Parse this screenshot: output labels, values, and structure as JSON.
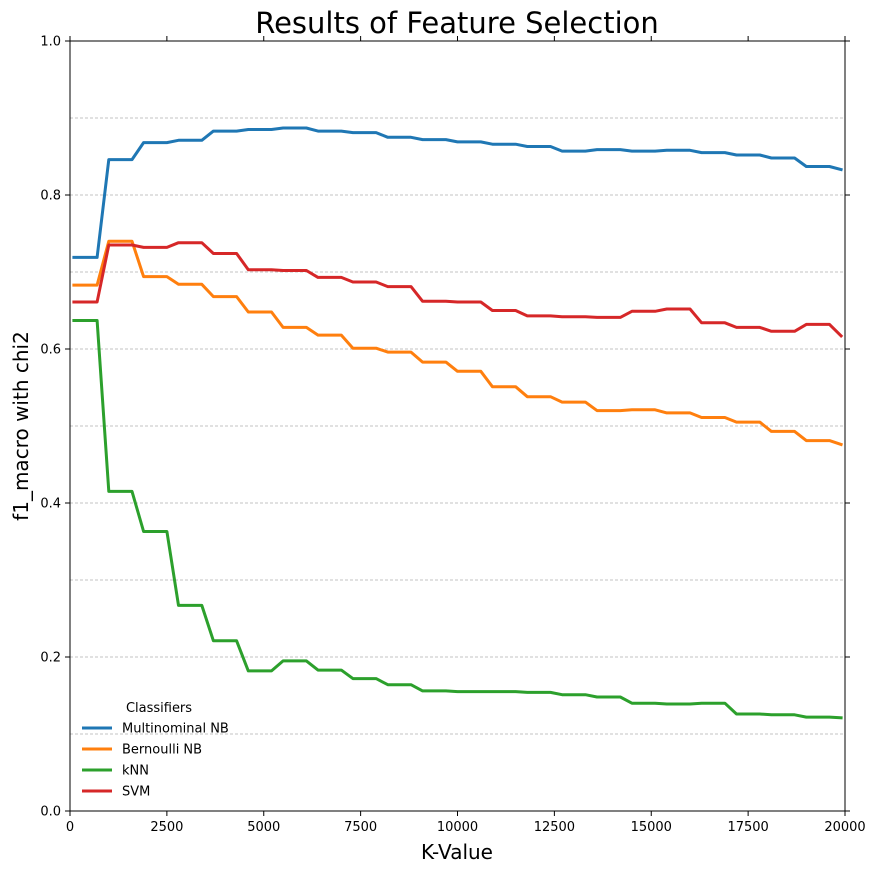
{
  "chart_data": {
    "type": "line",
    "title": "Results of Feature Selection",
    "xlabel": "K-Value",
    "ylabel": "f1_macro with chi2",
    "xlim": [
      0,
      20000
    ],
    "ylim": [
      0.0,
      1.0
    ],
    "xticks": [
      "0",
      "2500",
      "5000",
      "7500",
      "10000",
      "12500",
      "15000",
      "17500",
      "20000"
    ],
    "yticks": [
      "0.0",
      "0.2",
      "0.4",
      "0.6",
      "0.8",
      "1.0"
    ],
    "grid": "horizontal dashed at every 0.1",
    "legend_title": "Classifiers",
    "legend_position": "lower-left",
    "x": [
      100,
      700,
      1000,
      1600,
      1900,
      2500,
      2800,
      3400,
      3700,
      4300,
      4600,
      5200,
      5500,
      6100,
      6400,
      7000,
      7300,
      7900,
      8200,
      8800,
      9100,
      9700,
      10000,
      10600,
      10900,
      11500,
      11800,
      12400,
      12700,
      13300,
      13600,
      14200,
      14500,
      15100,
      15400,
      16000,
      16300,
      16900,
      17200,
      17800,
      18100,
      18700,
      19000,
      19600,
      19900
    ],
    "series": [
      {
        "name": "Multinominal NB",
        "color": "#1f77b4",
        "values": [
          0.719,
          0.719,
          0.846,
          0.846,
          0.868,
          0.868,
          0.871,
          0.871,
          0.883,
          0.883,
          0.885,
          0.885,
          0.887,
          0.887,
          0.883,
          0.883,
          0.881,
          0.881,
          0.875,
          0.875,
          0.872,
          0.872,
          0.869,
          0.869,
          0.866,
          0.866,
          0.863,
          0.863,
          0.857,
          0.857,
          0.859,
          0.859,
          0.857,
          0.857,
          0.858,
          0.858,
          0.855,
          0.855,
          0.852,
          0.852,
          0.848,
          0.848,
          0.837,
          0.837,
          0.833
        ]
      },
      {
        "name": "Bernoulli NB",
        "color": "#ff7f0e",
        "values": [
          0.683,
          0.683,
          0.74,
          0.74,
          0.694,
          0.694,
          0.684,
          0.684,
          0.668,
          0.668,
          0.648,
          0.648,
          0.628,
          0.628,
          0.618,
          0.618,
          0.601,
          0.601,
          0.596,
          0.596,
          0.583,
          0.583,
          0.571,
          0.571,
          0.551,
          0.551,
          0.538,
          0.538,
          0.531,
          0.531,
          0.52,
          0.52,
          0.521,
          0.521,
          0.517,
          0.517,
          0.511,
          0.511,
          0.505,
          0.505,
          0.493,
          0.493,
          0.481,
          0.481,
          0.476
        ]
      },
      {
        "name": "kNN",
        "color": "#2ca02c",
        "values": [
          0.637,
          0.637,
          0.415,
          0.415,
          0.363,
          0.363,
          0.267,
          0.267,
          0.221,
          0.221,
          0.182,
          0.182,
          0.195,
          0.195,
          0.183,
          0.183,
          0.172,
          0.172,
          0.164,
          0.164,
          0.156,
          0.156,
          0.155,
          0.155,
          0.155,
          0.155,
          0.154,
          0.154,
          0.151,
          0.151,
          0.148,
          0.148,
          0.14,
          0.14,
          0.139,
          0.139,
          0.14,
          0.14,
          0.126,
          0.126,
          0.125,
          0.125,
          0.122,
          0.122,
          0.121
        ]
      },
      {
        "name": "SVM",
        "color": "#d62728",
        "values": [
          0.661,
          0.661,
          0.735,
          0.735,
          0.732,
          0.732,
          0.738,
          0.738,
          0.724,
          0.724,
          0.703,
          0.703,
          0.702,
          0.702,
          0.693,
          0.693,
          0.687,
          0.687,
          0.681,
          0.681,
          0.662,
          0.662,
          0.661,
          0.661,
          0.65,
          0.65,
          0.643,
          0.643,
          0.642,
          0.642,
          0.641,
          0.641,
          0.649,
          0.649,
          0.652,
          0.652,
          0.634,
          0.634,
          0.628,
          0.628,
          0.623,
          0.623,
          0.632,
          0.632,
          0.617
        ]
      }
    ]
  }
}
